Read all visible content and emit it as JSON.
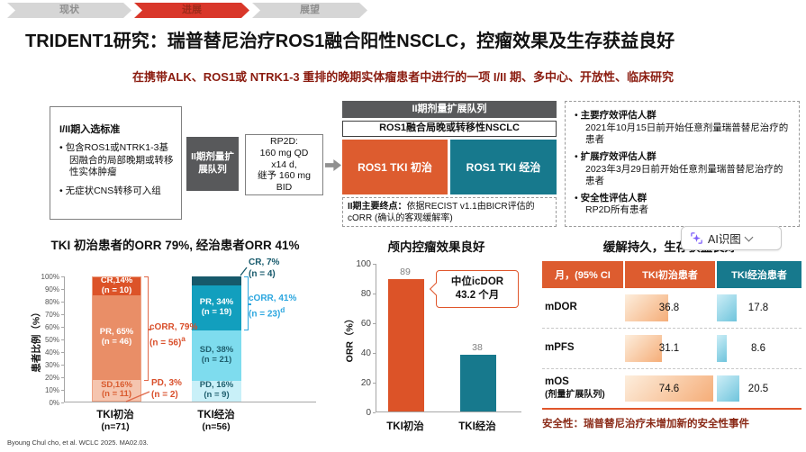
{
  "nav": {
    "items": [
      {
        "label": "现状",
        "active": false
      },
      {
        "label": "进展",
        "active": true
      },
      {
        "label": "展望",
        "active": false
      }
    ]
  },
  "title": "TRIDENT1研究：瑞普替尼治疗ROS1融合阳性NSCLC，控瘤效果及生存获益良好",
  "subtitle": "在携带ALK、ROS1或 NTRK1-3 重排的晚期实体瘤患者中进行的一项 I/II 期、多中心、开放性、临床研究",
  "design": {
    "criteria_box": {
      "title": "I/II期入选标准",
      "bullets": [
        "包含ROS1或NTRK1-3基因融合的局部晚期或转移性实体肿瘤",
        "无症状CNS转移可入组"
      ]
    },
    "phase2_small_box": "II期剂量扩展队列",
    "rp2d_box": "RP2D:\n160 mg QD\nx14 d,\n继予 160 mg\nBID",
    "flow": {
      "header": "II期剂量扩展队列",
      "population": "ROS1融合局晚或转移性NSCLC",
      "arm_naive": "ROS1 TKI 初治",
      "arm_pretreated": "ROS1 TKI 经治",
      "endpoint_label": "II期主要终点：",
      "endpoint_text": "依据RECIST v1.1由BICR评估的cORR (确认的客观缓解率)"
    },
    "populations_box": {
      "items": [
        {
          "title": "主要疗效评估人群",
          "desc": "2021年10月15日前开始任意剂量瑞普替尼治疗的患者"
        },
        {
          "title": "扩展疗效评估人群",
          "desc": "2023年3月29日前开始任意剂量瑞普替尼治疗的患者"
        },
        {
          "title": "安全性评估人群",
          "desc": "RP2D所有患者"
        }
      ]
    }
  },
  "chart_data": [
    {
      "type": "stacked-bar",
      "title": "TKI 初治患者的ORR 79%, 经治患者ORR 41%",
      "ylabel": "患者比例（%）",
      "ylim": [
        0,
        100
      ],
      "yticks": [
        "0%",
        "10%",
        "20%",
        "30%",
        "40%",
        "50%",
        "60%",
        "70%",
        "80%",
        "90%",
        "100%"
      ],
      "groups": [
        {
          "label": "TKI初治",
          "n": "(n=71)",
          "segments": [
            {
              "name": "SD",
              "label": "SD,16%",
              "n": "(n = 11)",
              "pct": 16,
              "color": "#f5c5af",
              "text": "#d95b2e"
            },
            {
              "name": "PR",
              "label": "PR, 65%",
              "n": "(n = 46)",
              "pct": 65,
              "color": "#e98e67",
              "text": "#ffffff"
            },
            {
              "name": "CR",
              "label": "CR,14%",
              "n": "(n = 10)",
              "pct": 14,
              "color": "#dc5328",
              "text": "#ffffff"
            }
          ],
          "callout": {
            "label": "PD, 3%",
            "n": "(n = 2)"
          },
          "bracket": {
            "label": "cORR, 79%",
            "n": "(n = 56)",
            "sup": "a"
          }
        },
        {
          "label": "TKI经治",
          "n": "(n=56)",
          "segments": [
            {
              "name": "PD",
              "label": "PD, 16%",
              "n": "(n = 9)",
              "pct": 16,
              "color": "#c9f0f8",
              "text": "#1f5f6e"
            },
            {
              "name": "SD",
              "label": "SD, 38%",
              "n": "(n = 21)",
              "pct": 38,
              "color": "#7edcee",
              "text": "#1f5f6e"
            },
            {
              "name": "PR",
              "label": "PR, 34%",
              "n": "(n = 19)",
              "pct": 34,
              "color": "#129fbe",
              "text": "#ffffff"
            },
            {
              "name": "CR",
              "label": "",
              "n": "",
              "pct": 7,
              "color": "#16596b",
              "text": "#ffffff"
            }
          ],
          "callout": {
            "label": "CR, 7%",
            "n": "(n = 4)"
          },
          "bracket": {
            "label": "cORR, 41%",
            "n": "(n = 23)",
            "sup": "d"
          }
        }
      ]
    },
    {
      "type": "bar",
      "title": "颅内控瘤效果良好",
      "ylabel": "ORR（%）",
      "ylim": [
        0,
        100
      ],
      "yticks": [
        0,
        20,
        40,
        60,
        80,
        100
      ],
      "categories": [
        "TKI初治",
        "TKI经治"
      ],
      "values": [
        89,
        38
      ],
      "colors": [
        "#dc5328",
        "#17798d"
      ],
      "annotation_line1": "中位icDOR",
      "annotation_line2": "43.2 个月"
    },
    {
      "type": "table",
      "title": "缓解持久，生存获益良好",
      "columns": [
        "月，(95% CI",
        "TKI初治患者",
        "TKI经治患者"
      ],
      "rows": [
        {
          "label": "mDOR",
          "sub": "",
          "naive": 36.8,
          "pretreated": 17.8
        },
        {
          "label": "mPFS",
          "sub": "",
          "naive": 31.1,
          "pretreated": 8.6
        },
        {
          "label": "mOS",
          "sub": "(剂量扩展队列)",
          "naive": 74.6,
          "pretreated": 20.5
        }
      ],
      "max_value": 74.6,
      "footnote": "安全性：瑞普替尼治疗未增加新的安全性事件"
    }
  ],
  "ai_button": {
    "label": "AI识图"
  },
  "footer": "Byoung Chul cho, et al. WCLC 2025. MA02.03.",
  "colors": {
    "accent_orange": "#dd5c2f",
    "accent_teal": "#17798d",
    "nav_red": "#d9372a",
    "dark_gray_box": "#58595b",
    "subtitle_red": "#8b1c10"
  }
}
